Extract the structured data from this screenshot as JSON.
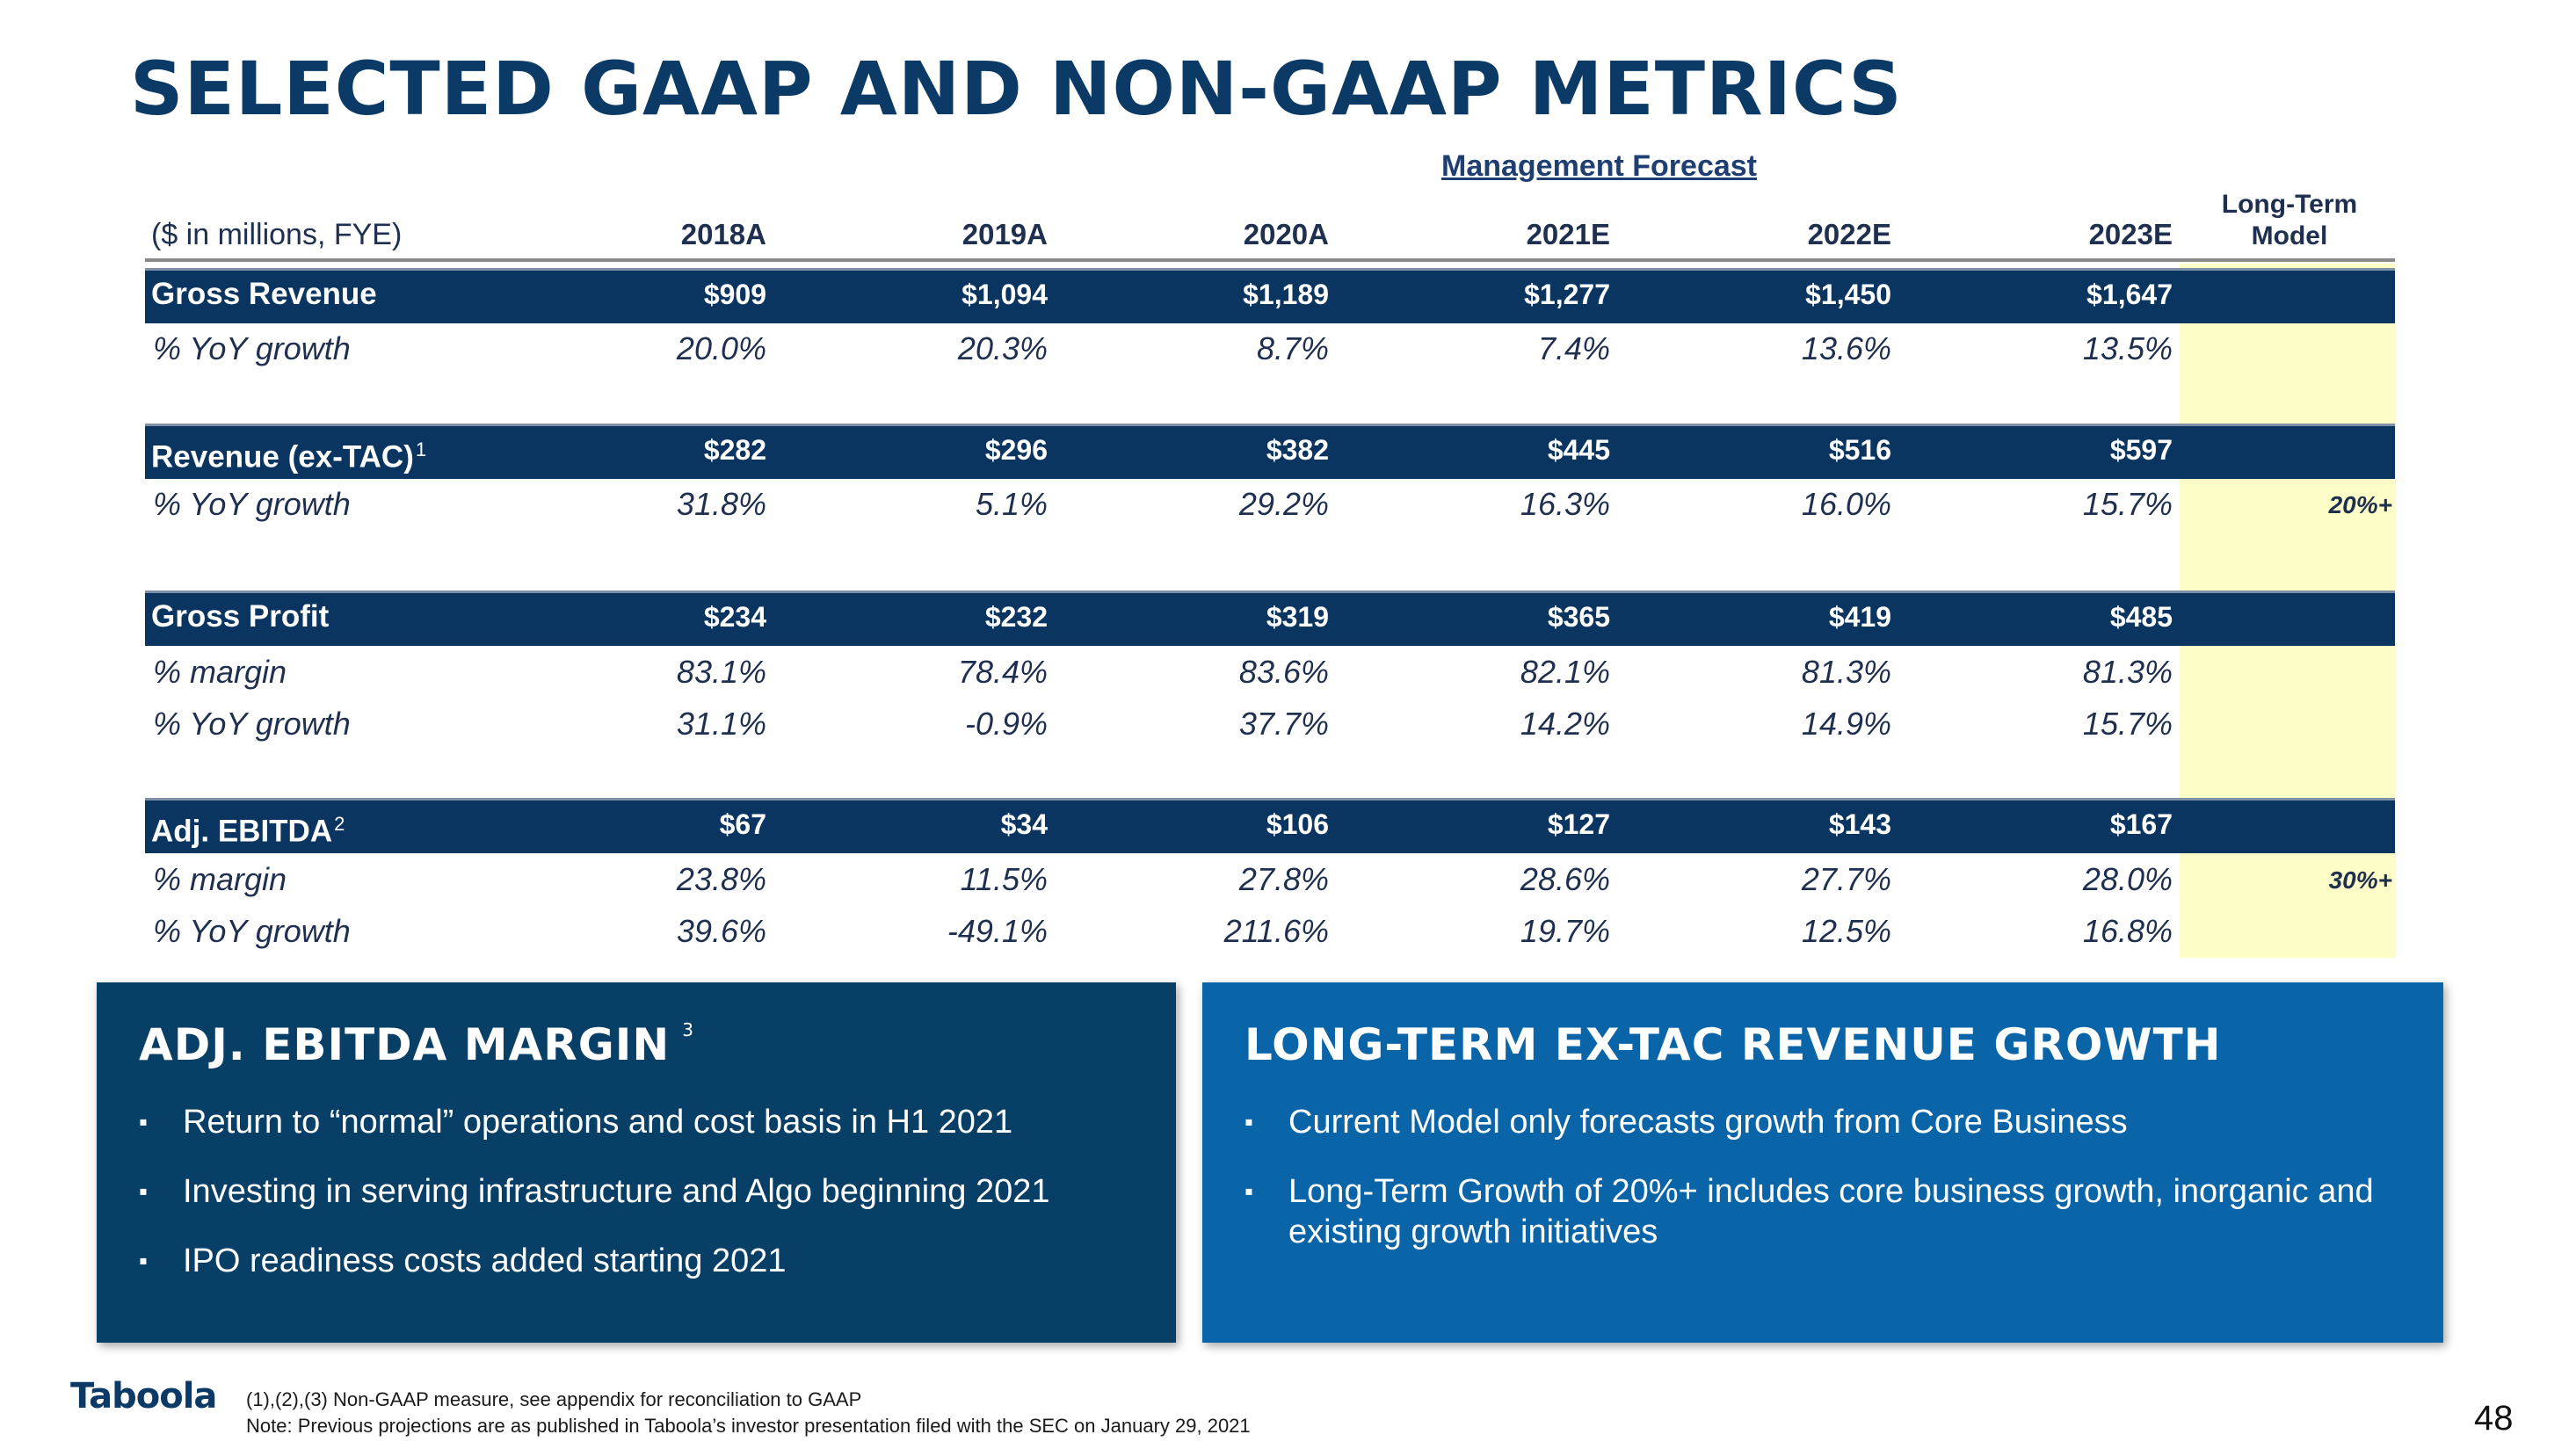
{
  "title": "SELECTED GAAP AND NON-GAAP METRICS",
  "forecast_label": "Management Forecast",
  "units_label": "($ in millions, FYE)",
  "years": [
    "2018A",
    "2019A",
    "2020A",
    "2021E",
    "2022E",
    "2023E"
  ],
  "long_term_header": [
    "Long-Term",
    "Model"
  ],
  "sections": [
    {
      "label": "Gross Revenue",
      "footnote": "",
      "values": [
        "$909",
        "$1,094",
        "$1,189",
        "$1,277",
        "$1,450",
        "$1,647"
      ],
      "rows": [
        {
          "label": "% YoY growth",
          "values": [
            "20.0%",
            "20.3%",
            "8.7%",
            "7.4%",
            "13.6%",
            "13.5%"
          ],
          "long_term": ""
        }
      ]
    },
    {
      "label": "Revenue (ex-TAC)",
      "footnote": "1",
      "values": [
        "$282",
        "$296",
        "$382",
        "$445",
        "$516",
        "$597"
      ],
      "rows": [
        {
          "label": "% YoY growth",
          "values": [
            "31.8%",
            "5.1%",
            "29.2%",
            "16.3%",
            "16.0%",
            "15.7%"
          ],
          "long_term": "20%+"
        }
      ]
    },
    {
      "label": "Gross Profit",
      "footnote": "",
      "values": [
        "$234",
        "$232",
        "$319",
        "$365",
        "$419",
        "$485"
      ],
      "rows": [
        {
          "label": "% margin",
          "values": [
            "83.1%",
            "78.4%",
            "83.6%",
            "82.1%",
            "81.3%",
            "81.3%"
          ],
          "long_term": ""
        },
        {
          "label": "% YoY growth",
          "values": [
            "31.1%",
            "-0.9%",
            "37.7%",
            "14.2%",
            "14.9%",
            "15.7%"
          ],
          "long_term": ""
        }
      ]
    },
    {
      "label": "Adj. EBITDA",
      "footnote": "2",
      "values": [
        "$67",
        "$34",
        "$106",
        "$127",
        "$143",
        "$167"
      ],
      "rows": [
        {
          "label": "% margin",
          "values": [
            "23.8%",
            "11.5%",
            "27.8%",
            "28.6%",
            "27.7%",
            "28.0%"
          ],
          "long_term": "30%+"
        },
        {
          "label": "% YoY growth",
          "values": [
            "39.6%",
            "-49.1%",
            "211.6%",
            "19.7%",
            "12.5%",
            "16.8%"
          ],
          "long_term": ""
        }
      ]
    }
  ],
  "panels": {
    "left": {
      "heading": "ADJ. EBITDA MARGIN",
      "footnote": "3",
      "bullets": [
        "Return to “normal” operations and cost basis in H1 2021",
        "Investing in serving infrastructure and Algo beginning 2021",
        "IPO readiness costs added starting 2021"
      ]
    },
    "right": {
      "heading": "LONG-TERM EX-TAC REVENUE GROWTH",
      "bullets": [
        "Current Model only forecasts growth from Core Business",
        "Long-Term Growth of 20%+ includes core business growth, inorganic and existing growth initiatives"
      ]
    }
  },
  "bullet_mark": "▪",
  "logo_text": "Taboola",
  "footnotes": [
    "(1),(2),(3) Non-GAAP measure, see appendix for reconciliation to GAAP",
    "Note: Previous projections are as published in Taboola’s investor presentation filed with the SEC on January 29, 2021"
  ],
  "page_number": "48",
  "colors": {
    "navy": "#0a3561",
    "title": "#0b3a66",
    "blue_panel": "#0a64a8",
    "dark_panel": "#083f66",
    "highlight": "#fdfdc8"
  }
}
